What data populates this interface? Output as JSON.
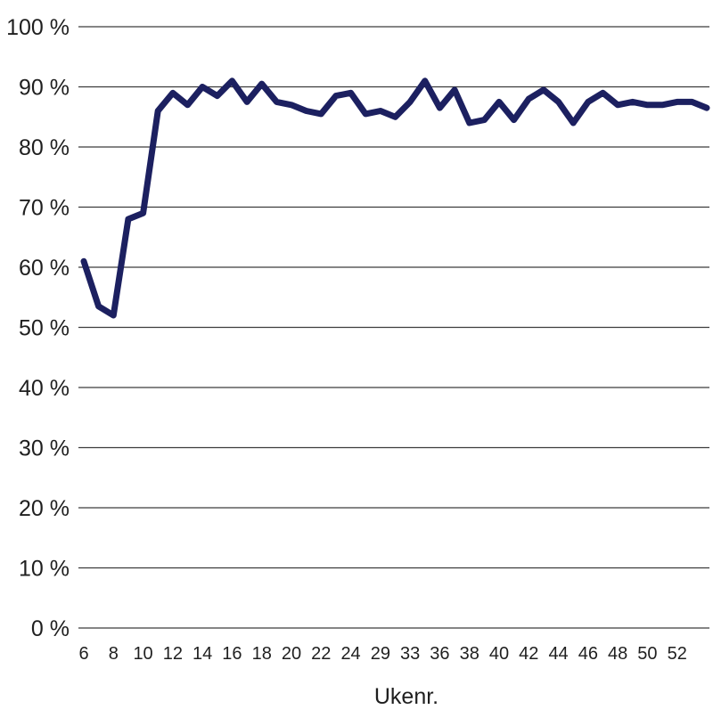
{
  "chart_data": {
    "type": "line",
    "title": "",
    "xlabel": "Ukenr.",
    "ylabel": "",
    "ylim": [
      0,
      100
    ],
    "y_ticks": [
      "0 %",
      "10 %",
      "20 %",
      "30 %",
      "40 %",
      "50 %",
      "60 %",
      "70 %",
      "80 %",
      "90 %",
      "100 %"
    ],
    "x_tick_labels": [
      "6",
      "8",
      "10",
      "12",
      "14",
      "16",
      "18",
      "20",
      "22",
      "24",
      "29",
      "33",
      "36",
      "38",
      "40",
      "42",
      "44",
      "46",
      "48",
      "50",
      "52"
    ],
    "grid": true,
    "line_color": "#1c2060",
    "categories": [
      "6",
      "7",
      "8",
      "9",
      "10",
      "11",
      "12",
      "13",
      "14",
      "15",
      "16",
      "17",
      "18",
      "19",
      "20",
      "21",
      "22",
      "23",
      "24",
      "25",
      "29",
      "30",
      "33",
      "34",
      "35",
      "36",
      "37",
      "38",
      "39",
      "40",
      "41",
      "42",
      "43",
      "44",
      "45",
      "46",
      "47",
      "48",
      "49",
      "50",
      "51",
      "52",
      "53"
    ],
    "series": [
      {
        "values": [
          61.0,
          53.5,
          52.0,
          68.0,
          69.0,
          86.0,
          89.0,
          87.0,
          90.0,
          88.5,
          91.0,
          87.5,
          90.5,
          87.5,
          87.0,
          86.0,
          85.5,
          88.5,
          89.0,
          85.5,
          86.0,
          85.0,
          87.5,
          91.0,
          86.5,
          89.5,
          84.0,
          84.5,
          87.5,
          84.5,
          88.0,
          89.5,
          87.5,
          84.0,
          87.5,
          89.0,
          87.0,
          87.5,
          87.0,
          87.0,
          87.5,
          87.5,
          86.5
        ]
      }
    ]
  }
}
